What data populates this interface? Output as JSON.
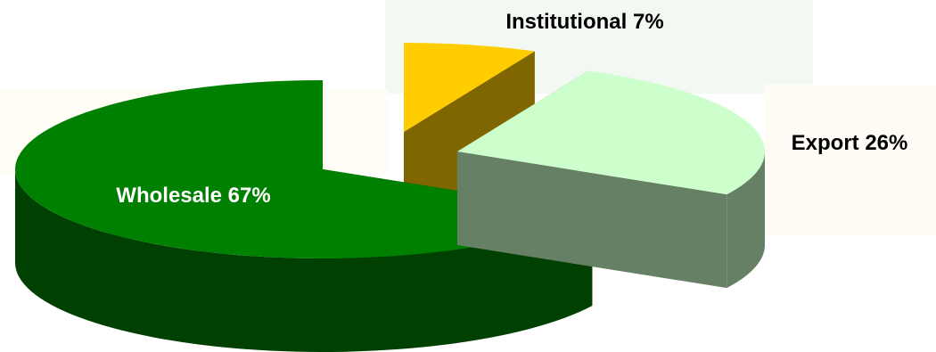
{
  "chart_data": {
    "type": "pie",
    "title": "",
    "style": "3d-exploded",
    "legend": "none",
    "slices": [
      {
        "label": "Wholesale 67%",
        "category": "Wholesale",
        "value": 67,
        "top_color": "#008000",
        "side_color": "#004000",
        "label_color": "#ffffff"
      },
      {
        "label": "Institutional 7%",
        "category": "Institutional",
        "value": 7,
        "top_color": "#ffcc00",
        "side_color": "#806600",
        "label_color": "#000000"
      },
      {
        "label": "Export 26%",
        "category": "Export",
        "value": 26,
        "top_color": "#ccffcc",
        "side_color": "#668066",
        "label_color": "#000000"
      }
    ]
  }
}
